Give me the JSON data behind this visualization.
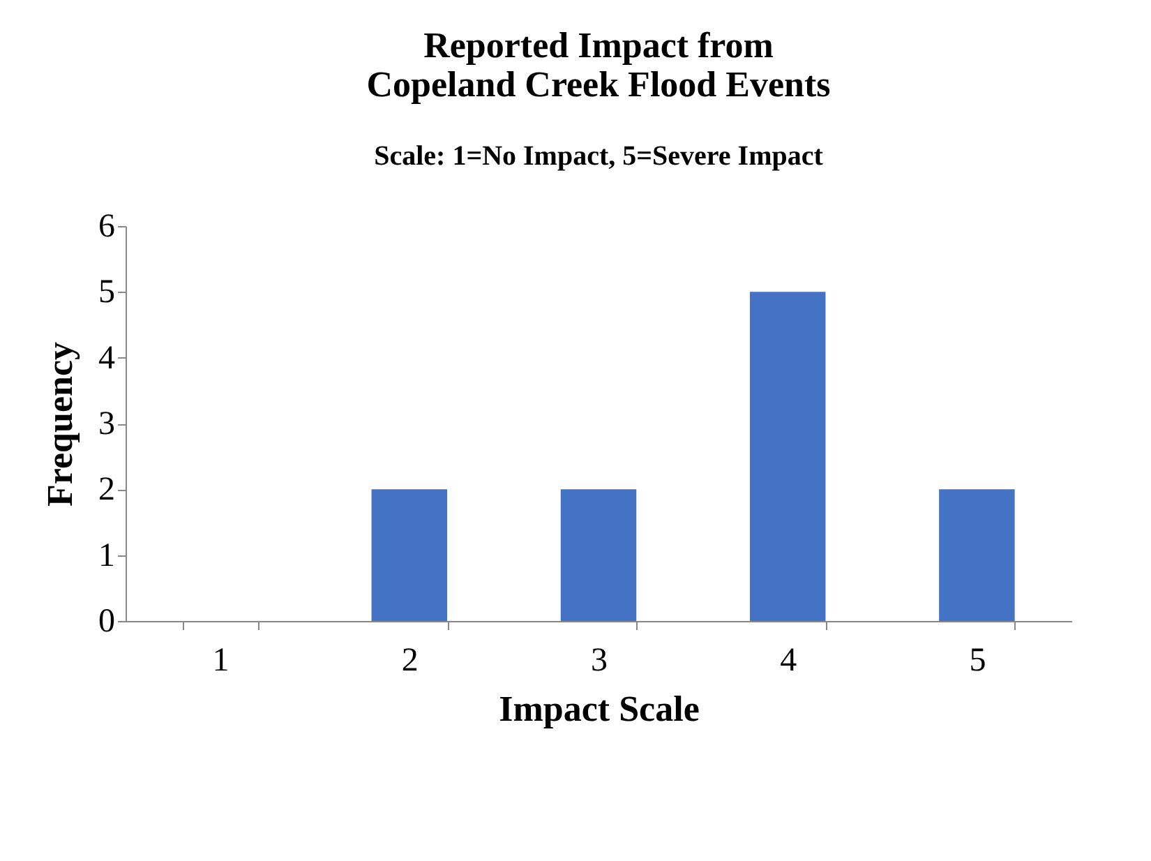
{
  "chart_data": {
    "type": "bar",
    "title": "Reported Impact from\nCopeland Creek Flood Events",
    "subtitle": "Scale: 1=No Impact, 5=Severe Impact",
    "xlabel": "Impact Scale",
    "ylabel": "Frequency",
    "categories": [
      "1",
      "2",
      "3",
      "4",
      "5"
    ],
    "values": [
      0,
      2,
      2,
      5,
      2
    ],
    "color": "#4472c4",
    "ylim": [
      0,
      6
    ],
    "yticks": [
      0,
      1,
      2,
      3,
      4,
      5,
      6
    ]
  }
}
